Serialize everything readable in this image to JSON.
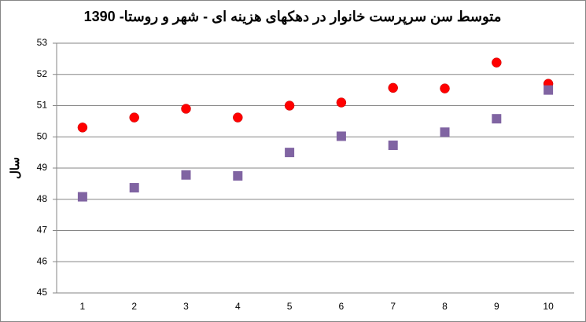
{
  "chart_data": {
    "type": "scatter",
    "title": "متوسط سن سرپرست خانوار در دهکهای هزینه ای - شهر و روستا- 1390",
    "y_label": "سال",
    "categories": [
      "1",
      "2",
      "3",
      "4",
      "5",
      "6",
      "7",
      "8",
      "9",
      "10"
    ],
    "series": [
      {
        "color": "#ff0000",
        "marker": "circle",
        "values": [
          50.3,
          50.62,
          50.9,
          50.62,
          51.0,
          51.1,
          51.57,
          51.55,
          52.38,
          51.7
        ]
      },
      {
        "color": "#8064a2",
        "marker": "square",
        "values": [
          48.08,
          48.37,
          48.78,
          48.75,
          49.5,
          50.02,
          49.73,
          50.15,
          50.58,
          51.5
        ]
      }
    ],
    "ylim": [
      45,
      53
    ],
    "yticks": [
      45,
      46,
      47,
      48,
      49,
      50,
      51,
      52,
      53
    ],
    "grid": true
  }
}
